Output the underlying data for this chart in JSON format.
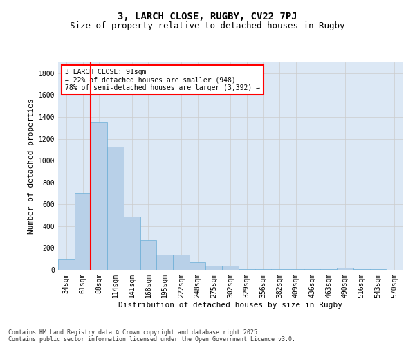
{
  "title1": "3, LARCH CLOSE, RUGBY, CV22 7PJ",
  "title2": "Size of property relative to detached houses in Rugby",
  "xlabel": "Distribution of detached houses by size in Rugby",
  "ylabel": "Number of detached properties",
  "categories": [
    "34sqm",
    "61sqm",
    "88sqm",
    "114sqm",
    "141sqm",
    "168sqm",
    "195sqm",
    "222sqm",
    "248sqm",
    "275sqm",
    "302sqm",
    "329sqm",
    "356sqm",
    "382sqm",
    "409sqm",
    "436sqm",
    "463sqm",
    "490sqm",
    "516sqm",
    "543sqm",
    "570sqm"
  ],
  "values": [
    100,
    700,
    1350,
    1130,
    490,
    275,
    140,
    140,
    70,
    35,
    35,
    5,
    5,
    5,
    5,
    5,
    5,
    20,
    5,
    5,
    0
  ],
  "bar_color": "#b8d0e8",
  "bar_edge_color": "#6aaed6",
  "grid_color": "#cccccc",
  "background_color": "#dce8f5",
  "vline_color": "red",
  "vline_x_index": 2,
  "annotation_text": "3 LARCH CLOSE: 91sqm\n← 22% of detached houses are smaller (948)\n78% of semi-detached houses are larger (3,392) →",
  "ylim": [
    0,
    1900
  ],
  "yticks": [
    0,
    200,
    400,
    600,
    800,
    1000,
    1200,
    1400,
    1600,
    1800
  ],
  "title1_fontsize": 10,
  "title2_fontsize": 9,
  "tick_fontsize": 7,
  "ylabel_fontsize": 8,
  "xlabel_fontsize": 8,
  "annot_fontsize": 7,
  "footer_fontsize": 6,
  "footer_text": "Contains HM Land Registry data © Crown copyright and database right 2025.\nContains public sector information licensed under the Open Government Licence v3.0."
}
